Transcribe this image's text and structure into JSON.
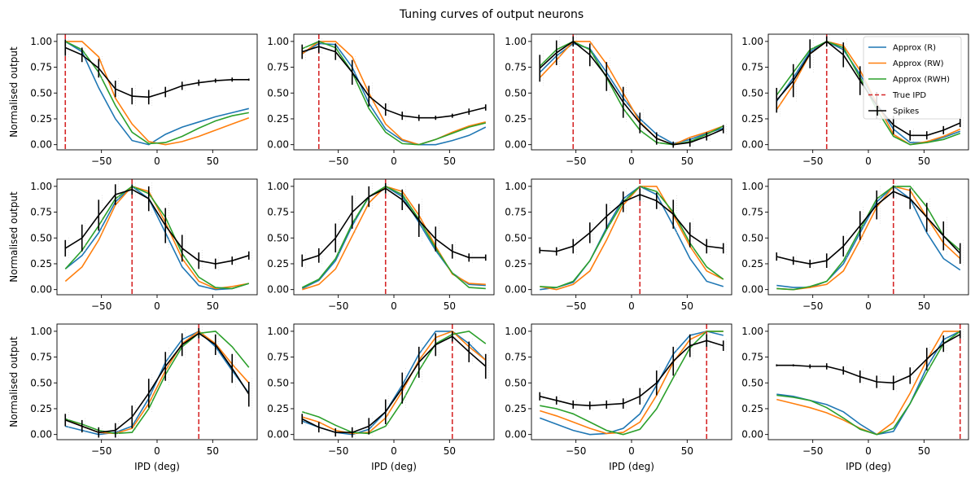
{
  "title": "Tuning curves of output neurons",
  "xlabel": "IPD (deg)",
  "ylabel": "Normalised output",
  "colors": {
    "approx_r": "#1f77b4",
    "approx_rw": "#ff7f0e",
    "approx_rwh": "#2ca02c",
    "true_ipd": "#d62728",
    "spikes": "#000000"
  },
  "legend": {
    "placement": "top-right of last panel in first row",
    "entries": [
      "Approx (R)",
      "Approx (RW)",
      "Approx (RWH)",
      "True IPD",
      "Spikes"
    ]
  },
  "chart_data": {
    "type": "line",
    "layout": "3x4 grid of subplots",
    "x": [
      -82.5,
      -67.5,
      -52.5,
      -37.5,
      -22.5,
      -7.5,
      7.5,
      22.5,
      37.5,
      52.5,
      67.5,
      82.5
    ],
    "xlim": [
      -90,
      90
    ],
    "ylim": [
      -0.05,
      1.07
    ],
    "xticks": [
      -50,
      0,
      50
    ],
    "xtick_labels": [
      "−50",
      "0",
      "50"
    ],
    "yticks": [
      0,
      0.25,
      0.5,
      0.75,
      1
    ],
    "ytick_labels": [
      "0.00",
      "0.25",
      "0.50",
      "0.75",
      "1.00"
    ],
    "panels": [
      {
        "true_ipd": -82.5,
        "r": [
          1.0,
          0.9,
          0.55,
          0.25,
          0.04,
          0.0,
          0.1,
          0.17,
          0.22,
          0.27,
          0.31,
          0.35
        ],
        "rw": [
          1.0,
          1.0,
          0.85,
          0.45,
          0.2,
          0.03,
          0.0,
          0.03,
          0.08,
          0.14,
          0.2,
          0.26
        ],
        "rwh": [
          1.0,
          0.92,
          0.7,
          0.38,
          0.12,
          0.01,
          0.02,
          0.08,
          0.16,
          0.23,
          0.28,
          0.31
        ],
        "spikes": [
          0.94,
          0.87,
          0.74,
          0.54,
          0.47,
          0.46,
          0.51,
          0.57,
          0.6,
          0.62,
          0.63,
          0.63
        ],
        "err": [
          0.08,
          0.07,
          0.09,
          0.08,
          0.08,
          0.07,
          0.05,
          0.04,
          0.03,
          0.02,
          0.02,
          0.01
        ]
      },
      {
        "true_ipd": -67.5,
        "r": [
          0.88,
          0.98,
          0.97,
          0.75,
          0.4,
          0.15,
          0.04,
          0.0,
          0.0,
          0.04,
          0.09,
          0.17
        ],
        "rw": [
          0.88,
          1.0,
          1.0,
          0.85,
          0.5,
          0.2,
          0.05,
          0.0,
          0.05,
          0.12,
          0.18,
          0.22
        ],
        "rwh": [
          0.93,
          1.0,
          0.94,
          0.7,
          0.35,
          0.12,
          0.01,
          0.0,
          0.05,
          0.11,
          0.17,
          0.21
        ],
        "spikes": [
          0.9,
          0.95,
          0.9,
          0.7,
          0.47,
          0.34,
          0.28,
          0.26,
          0.26,
          0.28,
          0.32,
          0.36
        ],
        "err": [
          0.07,
          0.06,
          0.08,
          0.12,
          0.1,
          0.06,
          0.04,
          0.03,
          0.02,
          0.02,
          0.03,
          0.03
        ]
      },
      {
        "true_ipd": -52.5,
        "r": [
          0.7,
          0.86,
          0.98,
          0.93,
          0.7,
          0.45,
          0.25,
          0.1,
          0.01,
          0.05,
          0.11,
          0.16
        ],
        "rw": [
          0.65,
          0.82,
          1.0,
          1.0,
          0.78,
          0.5,
          0.22,
          0.06,
          0.0,
          0.07,
          0.12,
          0.18
        ],
        "rwh": [
          0.76,
          0.92,
          1.0,
          0.92,
          0.65,
          0.35,
          0.14,
          0.02,
          0.0,
          0.03,
          0.1,
          0.18
        ],
        "spikes": [
          0.74,
          0.89,
          1.0,
          0.87,
          0.66,
          0.41,
          0.21,
          0.06,
          0.0,
          0.02,
          0.08,
          0.15
        ],
        "err": [
          0.13,
          0.12,
          0.05,
          0.11,
          0.14,
          0.15,
          0.1,
          0.06,
          0.03,
          0.04,
          0.04,
          0.04
        ]
      },
      {
        "true_ipd": -37.5,
        "r": [
          0.42,
          0.65,
          0.9,
          1.0,
          0.92,
          0.68,
          0.4,
          0.15,
          0.02,
          0.02,
          0.07,
          0.13
        ],
        "rw": [
          0.34,
          0.58,
          0.88,
          1.0,
          0.96,
          0.72,
          0.4,
          0.1,
          0.0,
          0.03,
          0.08,
          0.15
        ],
        "rwh": [
          0.48,
          0.7,
          0.92,
          1.0,
          0.94,
          0.65,
          0.34,
          0.08,
          0.0,
          0.02,
          0.05,
          0.11
        ],
        "spikes": [
          0.43,
          0.62,
          0.88,
          1.0,
          0.87,
          0.62,
          0.38,
          0.19,
          0.09,
          0.09,
          0.14,
          0.21
        ],
        "err": [
          0.12,
          0.16,
          0.14,
          0.05,
          0.12,
          0.14,
          0.13,
          0.09,
          0.05,
          0.04,
          0.04,
          0.04
        ]
      },
      {
        "true_ipd": -22.5,
        "r": [
          0.2,
          0.33,
          0.55,
          0.85,
          1.0,
          0.88,
          0.55,
          0.22,
          0.04,
          0.0,
          0.01,
          0.06
        ],
        "rw": [
          0.08,
          0.22,
          0.48,
          0.82,
          1.0,
          0.95,
          0.65,
          0.3,
          0.08,
          0.01,
          0.03,
          0.06
        ],
        "rwh": [
          0.2,
          0.38,
          0.62,
          0.88,
          1.0,
          0.93,
          0.7,
          0.35,
          0.12,
          0.02,
          0.01,
          0.06
        ],
        "spikes": [
          0.4,
          0.5,
          0.72,
          0.92,
          0.97,
          0.88,
          0.62,
          0.4,
          0.28,
          0.25,
          0.28,
          0.33
        ],
        "err": [
          0.08,
          0.13,
          0.15,
          0.1,
          0.05,
          0.12,
          0.17,
          0.13,
          0.08,
          0.05,
          0.04,
          0.04
        ]
      },
      {
        "true_ipd": -7.5,
        "r": [
          0.01,
          0.09,
          0.28,
          0.62,
          0.9,
          1.0,
          0.9,
          0.65,
          0.38,
          0.16,
          0.05,
          0.04
        ],
        "rw": [
          0.0,
          0.05,
          0.2,
          0.52,
          0.84,
          1.0,
          0.95,
          0.72,
          0.42,
          0.15,
          0.06,
          0.05
        ],
        "rwh": [
          0.02,
          0.1,
          0.3,
          0.64,
          0.9,
          1.0,
          0.92,
          0.68,
          0.4,
          0.16,
          0.02,
          0.01
        ],
        "spikes": [
          0.28,
          0.33,
          0.5,
          0.75,
          0.9,
          0.98,
          0.87,
          0.67,
          0.49,
          0.37,
          0.31,
          0.31
        ],
        "err": [
          0.06,
          0.07,
          0.14,
          0.16,
          0.1,
          0.05,
          0.1,
          0.16,
          0.12,
          0.07,
          0.04,
          0.03
        ]
      },
      {
        "true_ipd": 7.5,
        "r": [
          0.0,
          0.02,
          0.07,
          0.28,
          0.6,
          0.88,
          1.0,
          0.92,
          0.62,
          0.3,
          0.08,
          0.03
        ],
        "rw": [
          0.03,
          0.0,
          0.05,
          0.18,
          0.48,
          0.82,
          1.0,
          1.0,
          0.72,
          0.42,
          0.18,
          0.1
        ],
        "rwh": [
          0.03,
          0.02,
          0.08,
          0.28,
          0.58,
          0.85,
          1.0,
          0.95,
          0.75,
          0.45,
          0.22,
          0.1
        ],
        "spikes": [
          0.38,
          0.37,
          0.42,
          0.55,
          0.71,
          0.85,
          0.92,
          0.86,
          0.73,
          0.53,
          0.42,
          0.4
        ],
        "err": [
          0.03,
          0.04,
          0.07,
          0.1,
          0.12,
          0.1,
          0.06,
          0.08,
          0.14,
          0.12,
          0.07,
          0.05
        ]
      },
      {
        "true_ipd": 22.5,
        "r": [
          0.04,
          0.02,
          0.02,
          0.08,
          0.25,
          0.55,
          0.85,
          1.0,
          0.88,
          0.55,
          0.3,
          0.19
        ],
        "rw": [
          0.01,
          0.0,
          0.02,
          0.05,
          0.18,
          0.48,
          0.8,
          1.0,
          0.96,
          0.7,
          0.45,
          0.3
        ],
        "rwh": [
          0.01,
          0.0,
          0.03,
          0.08,
          0.28,
          0.58,
          0.88,
          1.0,
          1.0,
          0.8,
          0.52,
          0.38
        ],
        "spikes": [
          0.32,
          0.28,
          0.25,
          0.28,
          0.42,
          0.62,
          0.82,
          0.95,
          0.88,
          0.7,
          0.52,
          0.35
        ],
        "err": [
          0.04,
          0.04,
          0.04,
          0.07,
          0.1,
          0.14,
          0.14,
          0.06,
          0.1,
          0.14,
          0.14,
          0.1
        ]
      },
      {
        "true_ipd": 37.5,
        "r": [
          0.08,
          0.04,
          0.0,
          0.02,
          0.08,
          0.35,
          0.7,
          0.92,
          1.0,
          0.85,
          0.62,
          0.4
        ],
        "rw": [
          0.15,
          0.08,
          0.02,
          0.01,
          0.06,
          0.3,
          0.62,
          0.88,
          1.0,
          0.88,
          0.68,
          0.5
        ],
        "rwh": [
          0.15,
          0.1,
          0.04,
          0.01,
          0.02,
          0.25,
          0.58,
          0.85,
          0.98,
          1.0,
          0.85,
          0.65
        ],
        "spikes": [
          0.14,
          0.08,
          0.02,
          0.04,
          0.17,
          0.4,
          0.66,
          0.87,
          0.98,
          0.87,
          0.64,
          0.39
        ],
        "err": [
          0.06,
          0.06,
          0.05,
          0.07,
          0.11,
          0.14,
          0.14,
          0.11,
          0.05,
          0.1,
          0.14,
          0.12
        ]
      },
      {
        "true_ipd": 52.5,
        "r": [
          0.13,
          0.07,
          0.02,
          0.0,
          0.05,
          0.22,
          0.48,
          0.78,
          1.0,
          1.0,
          0.88,
          0.72
        ],
        "rw": [
          0.17,
          0.12,
          0.04,
          0.01,
          0.02,
          0.16,
          0.42,
          0.72,
          0.94,
          1.0,
          0.85,
          0.72
        ],
        "rwh": [
          0.22,
          0.17,
          0.09,
          0.02,
          0.01,
          0.08,
          0.32,
          0.62,
          0.88,
          0.97,
          1.0,
          0.88
        ],
        "spikes": [
          0.15,
          0.07,
          0.02,
          0.02,
          0.08,
          0.22,
          0.45,
          0.7,
          0.87,
          0.95,
          0.8,
          0.66
        ],
        "err": [
          0.05,
          0.05,
          0.04,
          0.05,
          0.08,
          0.12,
          0.15,
          0.15,
          0.11,
          0.05,
          0.1,
          0.12
        ]
      },
      {
        "true_ipd": 67.5,
        "r": [
          0.16,
          0.1,
          0.04,
          0.0,
          0.01,
          0.06,
          0.2,
          0.48,
          0.78,
          0.96,
          1.0,
          0.96
        ],
        "rw": [
          0.23,
          0.18,
          0.12,
          0.06,
          0.01,
          0.02,
          0.12,
          0.38,
          0.7,
          0.92,
          1.0,
          1.0
        ],
        "rwh": [
          0.28,
          0.25,
          0.2,
          0.12,
          0.04,
          0.0,
          0.05,
          0.25,
          0.55,
          0.84,
          1.0,
          1.0
        ],
        "spikes": [
          0.37,
          0.33,
          0.29,
          0.28,
          0.29,
          0.3,
          0.37,
          0.5,
          0.71,
          0.86,
          0.91,
          0.86
        ],
        "err": [
          0.04,
          0.04,
          0.04,
          0.04,
          0.04,
          0.05,
          0.08,
          0.12,
          0.14,
          0.11,
          0.06,
          0.05
        ]
      },
      {
        "true_ipd": 82.5,
        "r": [
          0.39,
          0.37,
          0.33,
          0.29,
          0.22,
          0.1,
          0.0,
          0.03,
          0.3,
          0.65,
          0.92,
          1.0
        ],
        "rw": [
          0.34,
          0.3,
          0.26,
          0.21,
          0.14,
          0.06,
          0.0,
          0.12,
          0.4,
          0.72,
          1.0,
          1.0
        ],
        "rwh": [
          0.38,
          0.36,
          0.33,
          0.26,
          0.16,
          0.05,
          0.0,
          0.06,
          0.3,
          0.6,
          0.88,
          1.0
        ],
        "spikes": [
          0.67,
          0.67,
          0.66,
          0.66,
          0.62,
          0.56,
          0.51,
          0.5,
          0.57,
          0.73,
          0.88,
          0.97
        ],
        "err": [
          0.01,
          0.01,
          0.02,
          0.03,
          0.04,
          0.06,
          0.06,
          0.07,
          0.08,
          0.11,
          0.08,
          0.04
        ]
      }
    ]
  }
}
